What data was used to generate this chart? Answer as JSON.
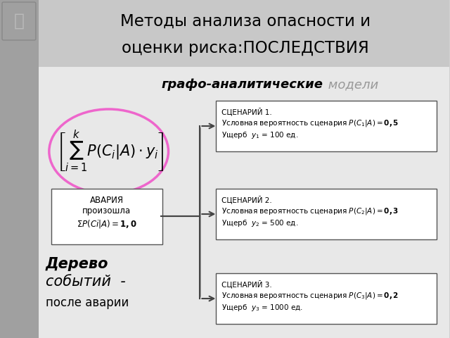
{
  "title_line1": "Методы анализа опасности и",
  "title_line2": "оценки риска:ПОСЛЕДСТВИЯ",
  "subtitle_bold": "графо-аналитические",
  "subtitle_light": " модели",
  "formula_text": "$\\left[\\sum_{i=1}^{k} P(C_i|A)\\cdot y_i\\right]$",
  "accident_box_line1": "АВАРИЯ",
  "accident_box_line2": "произошла",
  "accident_box_line3": "$\\Sigma P(Ci|A) = \\mathbf{1,0}$",
  "scenario1_title": "СЦЕНАРИЙ 1.",
  "scenario1_line1": "Условная вероятность сценария $P(C_1|A) = \\mathbf{0,5}$",
  "scenario1_line2": "Ущерб  $y_1$ = 100 ед.",
  "scenario2_title": "СЦЕНАРИЙ 2.",
  "scenario2_line1": "Условная вероятность сценария $P(C_2|A) = \\mathbf{0,3}$",
  "scenario2_line2": "Ущерб  $y_2$ = 500 ед.",
  "scenario3_title": "СЦЕНАРИЙ 3.",
  "scenario3_line1": "Условная вероятность сценария $P(C_3|A) = \\mathbf{0,2}$",
  "scenario3_line2": "Ущерб  $y_3$ = 1000 ед.",
  "bottom_text_line1": "Дерево",
  "bottom_text_line2": "событий  -",
  "bottom_text_line3": "после аварии",
  "bg_color": "#d0d0d0",
  "sidebar_color": "#a0a0a0",
  "title_bg_color": "#c8c8c8",
  "content_bg_color": "#e8e8e8",
  "box_border_color": "#555555",
  "arrow_color": "#444444",
  "circle_color": "#ee66cc",
  "white": "#ffffff"
}
